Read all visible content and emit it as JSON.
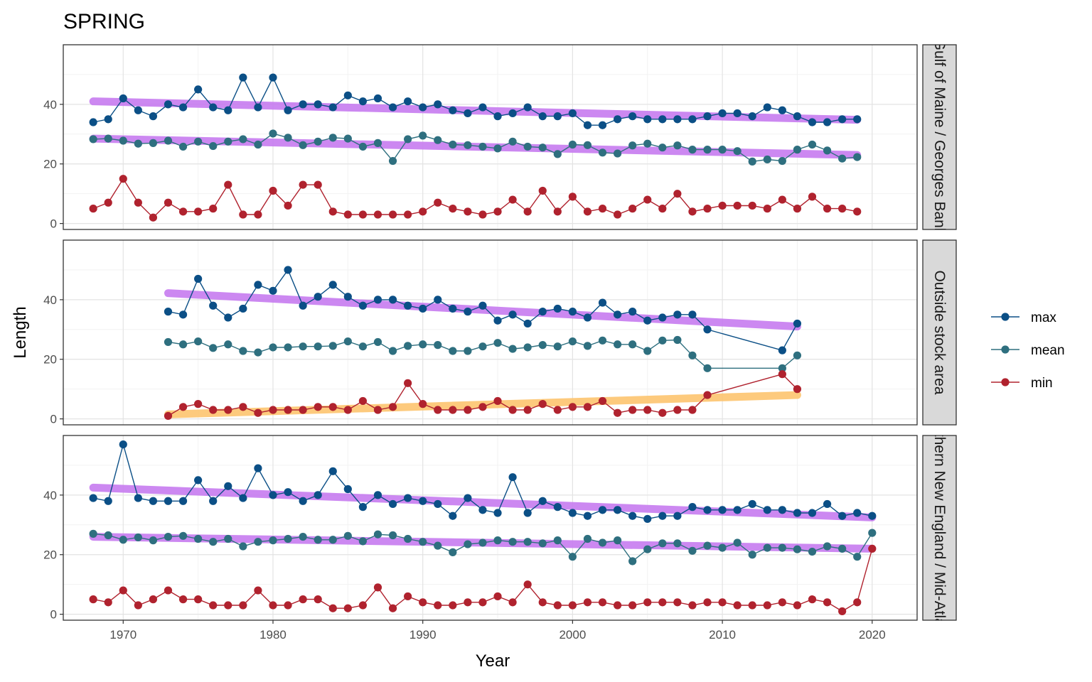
{
  "chart_data": {
    "type": "line",
    "title": "SPRING",
    "xlabel": "Year",
    "ylabel": "Length",
    "xlim": [
      1966,
      2023
    ],
    "ylim": [
      -2,
      60
    ],
    "x_ticks": [
      1970,
      1980,
      1990,
      2000,
      2010,
      2020
    ],
    "y_ticks": [
      0,
      20,
      40
    ],
    "grid": true,
    "legend_position": "right",
    "colors": {
      "max": "#0b4f86",
      "mean": "#2e6f7f",
      "min": "#b0222e",
      "trend_decline": "#c77cf0",
      "trend_increase": "#fdc56f"
    },
    "legend": [
      "max",
      "mean",
      "min"
    ],
    "panels": [
      {
        "strip": "Gulf of Maine / Georges Bank",
        "series": [
          {
            "name": "max",
            "x": [
              1968,
              1969,
              1970,
              1971,
              1972,
              1973,
              1974,
              1975,
              1976,
              1977,
              1978,
              1979,
              1980,
              1981,
              1982,
              1983,
              1984,
              1985,
              1986,
              1987,
              1988,
              1989,
              1990,
              1991,
              1992,
              1993,
              1994,
              1995,
              1996,
              1997,
              1998,
              1999,
              2000,
              2001,
              2002,
              2003,
              2004,
              2005,
              2006,
              2007,
              2008,
              2009,
              2010,
              2011,
              2012,
              2013,
              2014,
              2015,
              2016,
              2017,
              2018,
              2019
            ],
            "y": [
              34,
              35,
              42,
              38,
              36,
              40,
              39,
              45,
              39,
              38,
              49,
              39,
              49,
              38,
              40,
              40,
              39,
              43,
              41,
              42,
              39,
              41,
              39,
              40,
              38,
              37,
              39,
              36,
              37,
              39,
              36,
              36,
              37,
              33,
              33,
              35,
              36,
              35,
              35,
              35,
              35,
              36,
              37,
              37,
              36,
              39,
              38,
              36,
              34,
              34,
              35,
              35
            ]
          },
          {
            "name": "mean",
            "x": [
              1968,
              1969,
              1970,
              1971,
              1972,
              1973,
              1974,
              1975,
              1976,
              1977,
              1978,
              1979,
              1980,
              1981,
              1982,
              1983,
              1984,
              1985,
              1986,
              1987,
              1988,
              1989,
              1990,
              1991,
              1992,
              1993,
              1994,
              1995,
              1996,
              1997,
              1998,
              1999,
              2000,
              2001,
              2002,
              2003,
              2004,
              2005,
              2006,
              2007,
              2008,
              2009,
              2010,
              2011,
              2012,
              2013,
              2014,
              2015,
              2016,
              2017,
              2018,
              2019
            ],
            "y": [
              28.3,
              28.5,
              27.8,
              26.8,
              27,
              27.8,
              25.8,
              27.5,
              26,
              27.5,
              28.3,
              26.5,
              30.2,
              28.8,
              26.3,
              27.5,
              28.8,
              28.5,
              25.8,
              27,
              21,
              28.3,
              29.5,
              28,
              26.5,
              26.3,
              25.8,
              25.2,
              27.5,
              25.8,
              25.5,
              23.3,
              26.5,
              26.3,
              23.8,
              23.5,
              26.2,
              26.8,
              25.5,
              26.2,
              24.8,
              24.8,
              24.8,
              24.3,
              20.8,
              21.5,
              21,
              24.8,
              26.5,
              24.5,
              21.8,
              22.3
            ]
          },
          {
            "name": "min",
            "x": [
              1968,
              1969,
              1970,
              1971,
              1972,
              1973,
              1974,
              1975,
              1976,
              1977,
              1978,
              1979,
              1980,
              1981,
              1982,
              1983,
              1984,
              1985,
              1986,
              1987,
              1988,
              1989,
              1990,
              1991,
              1992,
              1993,
              1994,
              1995,
              1996,
              1997,
              1998,
              1999,
              2000,
              2001,
              2002,
              2003,
              2004,
              2005,
              2006,
              2007,
              2008,
              2009,
              2010,
              2011,
              2012,
              2013,
              2014,
              2015,
              2016,
              2017,
              2018,
              2019
            ],
            "y": [
              5,
              7,
              15,
              7,
              2,
              7,
              4,
              4,
              5,
              13,
              3,
              3,
              11,
              6,
              13,
              13,
              4,
              3,
              3,
              3,
              3,
              3,
              4,
              7,
              5,
              4,
              3,
              4,
              8,
              4,
              11,
              4,
              9,
              4,
              5,
              3,
              5,
              8,
              5,
              10,
              4,
              5,
              6,
              6,
              6,
              5,
              8,
              5,
              9,
              5,
              5,
              4
            ]
          }
        ],
        "trends": [
          {
            "series": "max",
            "x": [
              1968,
              2019
            ],
            "y": [
              41,
              34.8
            ]
          },
          {
            "series": "mean",
            "x": [
              1968,
              2019
            ],
            "y": [
              28.5,
              23
            ]
          }
        ]
      },
      {
        "strip": "Outside stock area",
        "series": [
          {
            "name": "max",
            "x": [
              1973,
              1974,
              1975,
              1976,
              1977,
              1978,
              1979,
              1980,
              1981,
              1982,
              1983,
              1984,
              1985,
              1986,
              1987,
              1988,
              1989,
              1990,
              1991,
              1992,
              1993,
              1994,
              1995,
              1996,
              1997,
              1998,
              1999,
              2000,
              2001,
              2002,
              2003,
              2004,
              2005,
              2006,
              2007,
              2008,
              2009,
              2014,
              2015
            ],
            "y": [
              36,
              35,
              47,
              38,
              34,
              37,
              45,
              43,
              50,
              38,
              41,
              45,
              41,
              38,
              40,
              40,
              38,
              37,
              40,
              37,
              36,
              38,
              33,
              35,
              32,
              36,
              37,
              36,
              34,
              39,
              35,
              36,
              33,
              34,
              35,
              35,
              30,
              23,
              32
            ]
          },
          {
            "name": "mean",
            "x": [
              1973,
              1974,
              1975,
              1976,
              1977,
              1978,
              1979,
              1980,
              1981,
              1982,
              1983,
              1984,
              1985,
              1986,
              1987,
              1988,
              1989,
              1990,
              1991,
              1992,
              1993,
              1994,
              1995,
              1996,
              1997,
              1998,
              1999,
              2000,
              2001,
              2002,
              2003,
              2004,
              2005,
              2006,
              2007,
              2008,
              2009,
              2014,
              2015
            ],
            "y": [
              25.8,
              25,
              26,
              23.8,
              25,
              22.8,
              22.3,
              24,
              24,
              24.3,
              24.3,
              24.5,
              26,
              24.3,
              25.8,
              22.8,
              24.5,
              25,
              24.8,
              22.8,
              22.8,
              24.3,
              25.5,
              23.5,
              24,
              24.8,
              24.3,
              26,
              24.5,
              26.3,
              25,
              25,
              22.8,
              26.3,
              26.5,
              21.3,
              17,
              17,
              21.3
            ]
          },
          {
            "name": "min",
            "x": [
              1973,
              1974,
              1975,
              1976,
              1977,
              1978,
              1979,
              1980,
              1981,
              1982,
              1983,
              1984,
              1985,
              1986,
              1987,
              1988,
              1989,
              1990,
              1991,
              1992,
              1993,
              1994,
              1995,
              1996,
              1997,
              1998,
              1999,
              2000,
              2001,
              2002,
              2003,
              2004,
              2005,
              2006,
              2007,
              2008,
              2009,
              2014,
              2015
            ],
            "y": [
              1,
              4,
              5,
              3,
              3,
              4,
              2,
              3,
              3,
              3,
              4,
              4,
              3,
              6,
              3,
              4,
              12,
              5,
              3,
              3,
              3,
              4,
              6,
              3,
              3,
              5,
              3,
              4,
              4,
              6,
              2,
              3,
              3,
              2,
              3,
              3,
              8,
              15,
              10
            ]
          }
        ],
        "trends": [
          {
            "series": "max",
            "x": [
              1973,
              2015
            ],
            "y": [
              42.2,
              31
            ]
          },
          {
            "series": "min",
            "x": [
              1973,
              2015
            ],
            "y": [
              1.5,
              8
            ]
          }
        ]
      },
      {
        "strip": "Southern New England / Mid-Atlantic",
        "series": [
          {
            "name": "max",
            "x": [
              1968,
              1969,
              1970,
              1971,
              1972,
              1973,
              1974,
              1975,
              1976,
              1977,
              1978,
              1979,
              1980,
              1981,
              1982,
              1983,
              1984,
              1985,
              1986,
              1987,
              1988,
              1989,
              1990,
              1991,
              1992,
              1993,
              1994,
              1995,
              1996,
              1997,
              1998,
              1999,
              2000,
              2001,
              2002,
              2003,
              2004,
              2005,
              2006,
              2007,
              2008,
              2009,
              2010,
              2011,
              2012,
              2013,
              2014,
              2015,
              2016,
              2017,
              2018,
              2019,
              2020
            ],
            "y": [
              39,
              38,
              57,
              39,
              38,
              38,
              38,
              45,
              38,
              43,
              39,
              49,
              40,
              41,
              38,
              40,
              48,
              42,
              36,
              40,
              37,
              39,
              38,
              37,
              33,
              39,
              35,
              34,
              46,
              34,
              38,
              36,
              34,
              33,
              35,
              35,
              33,
              32,
              33,
              33,
              36,
              35,
              35,
              35,
              37,
              35,
              35,
              34,
              34,
              37,
              33,
              34,
              33
            ]
          },
          {
            "name": "mean",
            "x": [
              1968,
              1969,
              1970,
              1971,
              1972,
              1973,
              1974,
              1975,
              1976,
              1977,
              1978,
              1979,
              1980,
              1981,
              1982,
              1983,
              1984,
              1985,
              1986,
              1987,
              1988,
              1989,
              1990,
              1991,
              1992,
              1993,
              1994,
              1995,
              1996,
              1997,
              1998,
              1999,
              2000,
              2001,
              2002,
              2003,
              2004,
              2005,
              2006,
              2007,
              2008,
              2009,
              2010,
              2011,
              2012,
              2013,
              2014,
              2015,
              2016,
              2017,
              2018,
              2019,
              2020
            ],
            "y": [
              27,
              26.5,
              25,
              25.8,
              24.8,
              26,
              26.3,
              25.3,
              24.3,
              25.3,
              22.8,
              24.3,
              24.8,
              25.3,
              26,
              25,
              25,
              26.3,
              24.5,
              26.8,
              26.5,
              25.3,
              24.3,
              23,
              20.8,
              23.5,
              24,
              24.8,
              24.3,
              24.3,
              23.8,
              24.8,
              19.3,
              25.3,
              24,
              24.8,
              17.8,
              21.8,
              23.8,
              23.8,
              21.3,
              23,
              22.3,
              24,
              20,
              22.3,
              22.3,
              21.8,
              21,
              22.8,
              22,
              19.3,
              27.3
            ]
          },
          {
            "name": "min",
            "x": [
              1968,
              1969,
              1970,
              1971,
              1972,
              1973,
              1974,
              1975,
              1976,
              1977,
              1978,
              1979,
              1980,
              1981,
              1982,
              1983,
              1984,
              1985,
              1986,
              1987,
              1988,
              1989,
              1990,
              1991,
              1992,
              1993,
              1994,
              1995,
              1996,
              1997,
              1998,
              1999,
              2000,
              2001,
              2002,
              2003,
              2004,
              2005,
              2006,
              2007,
              2008,
              2009,
              2010,
              2011,
              2012,
              2013,
              2014,
              2015,
              2016,
              2017,
              2018,
              2019,
              2020
            ],
            "y": [
              5,
              4,
              8,
              3,
              5,
              8,
              5,
              5,
              3,
              3,
              3,
              8,
              3,
              3,
              5,
              5,
              2,
              2,
              3,
              9,
              2,
              6,
              4,
              3,
              3,
              4,
              4,
              6,
              4,
              10,
              4,
              3,
              3,
              4,
              4,
              3,
              3,
              4,
              4,
              4,
              3,
              4,
              4,
              3,
              3,
              3,
              4,
              3,
              5,
              4,
              1,
              4,
              22
            ]
          }
        ],
        "trends": [
          {
            "series": "max",
            "x": [
              1968,
              2020
            ],
            "y": [
              42.5,
              32.5
            ]
          },
          {
            "series": "mean",
            "x": [
              1968,
              2020
            ],
            "y": [
              26,
              22
            ]
          }
        ]
      }
    ]
  }
}
